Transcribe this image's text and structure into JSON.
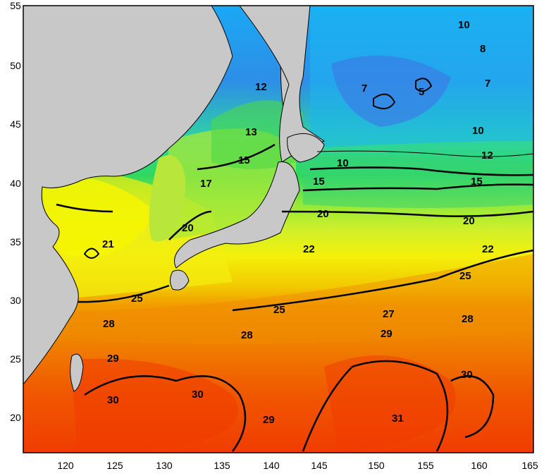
{
  "map": {
    "x_ticks": [
      "120",
      "125",
      "130",
      "135",
      "140",
      "145",
      "150",
      "155",
      "160",
      "165"
    ],
    "y_ticks": [
      "55",
      "50",
      "45",
      "40",
      "35",
      "30",
      "25",
      "20"
    ],
    "contour_labels": [
      "12",
      "13",
      "15",
      "17",
      "20",
      "21",
      "10",
      "15",
      "20",
      "22",
      "22",
      "25",
      "25",
      "25",
      "28",
      "28",
      "28",
      "27",
      "29",
      "29",
      "29",
      "30",
      "30",
      "31",
      "30",
      "7",
      "5",
      "7",
      "8",
      "10",
      "10",
      "12",
      "15",
      "20"
    ],
    "colors": {
      "land": "#c8c8c8",
      "cold_water": "#18b4f0",
      "cool_water": "#30d890",
      "mid_water": "#b8f028",
      "warm_water": "#f0f000",
      "hot_water": "#f08800",
      "hottest_water": "#f04000"
    }
  }
}
